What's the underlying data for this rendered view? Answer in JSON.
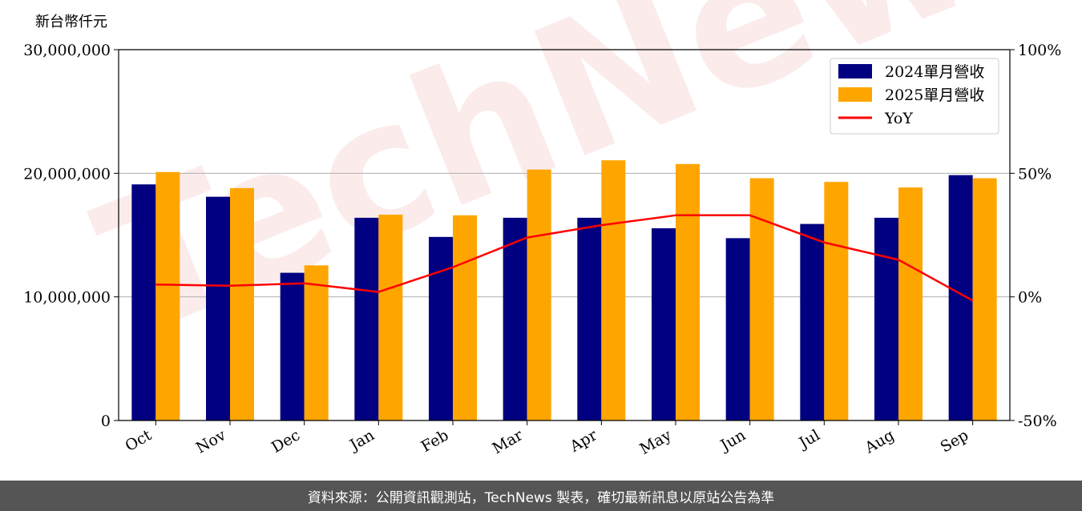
{
  "watermark": "TechNews",
  "footer": "資料來源：公開資訊觀測站，TechNews 製表，確切最新訊息以原站公告為準",
  "colors": {
    "series2024": "#000080",
    "series2025": "#FFA500",
    "yoy": "#FF0000",
    "grid": "#b0b0b0",
    "footer_bg": "#555555"
  },
  "chart_data": {
    "type": "bar",
    "ylabel": "新台幣仟元",
    "categories": [
      "Oct",
      "Nov",
      "Dec",
      "Jan",
      "Feb",
      "Mar",
      "Apr",
      "May",
      "Jun",
      "Jul",
      "Aug",
      "Sep"
    ],
    "ylim": [
      0,
      30000000
    ],
    "y_ticks": [
      0,
      10000000,
      20000000,
      30000000
    ],
    "y_tick_labels": [
      "0",
      "10,000,000",
      "20,000,000",
      "30,000,000"
    ],
    "y2lim": [
      -50,
      100
    ],
    "y2_ticks": [
      -50,
      0,
      50,
      100
    ],
    "y2_tick_labels": [
      "-50%",
      "0%",
      "50%",
      "100%"
    ],
    "grid": "horizontal",
    "legend": "top-right",
    "series": [
      {
        "name": "2024單月營收",
        "type": "bar",
        "axis": "left",
        "values": [
          19100000,
          18100000,
          11950000,
          16400000,
          14850000,
          16400000,
          16400000,
          15550000,
          14750000,
          15900000,
          16400000,
          19850000
        ]
      },
      {
        "name": "2025單月營收",
        "type": "bar",
        "axis": "left",
        "values": [
          20100000,
          18800000,
          12550000,
          16650000,
          16600000,
          20300000,
          21050000,
          20750000,
          19600000,
          19300000,
          18850000,
          19600000
        ]
      },
      {
        "name": "YoY",
        "type": "line",
        "axis": "right",
        "values": [
          5.0,
          4.5,
          5.5,
          2.0,
          12.0,
          24.0,
          29.0,
          33.0,
          33.0,
          22.0,
          15.0,
          -1.5
        ]
      }
    ]
  }
}
